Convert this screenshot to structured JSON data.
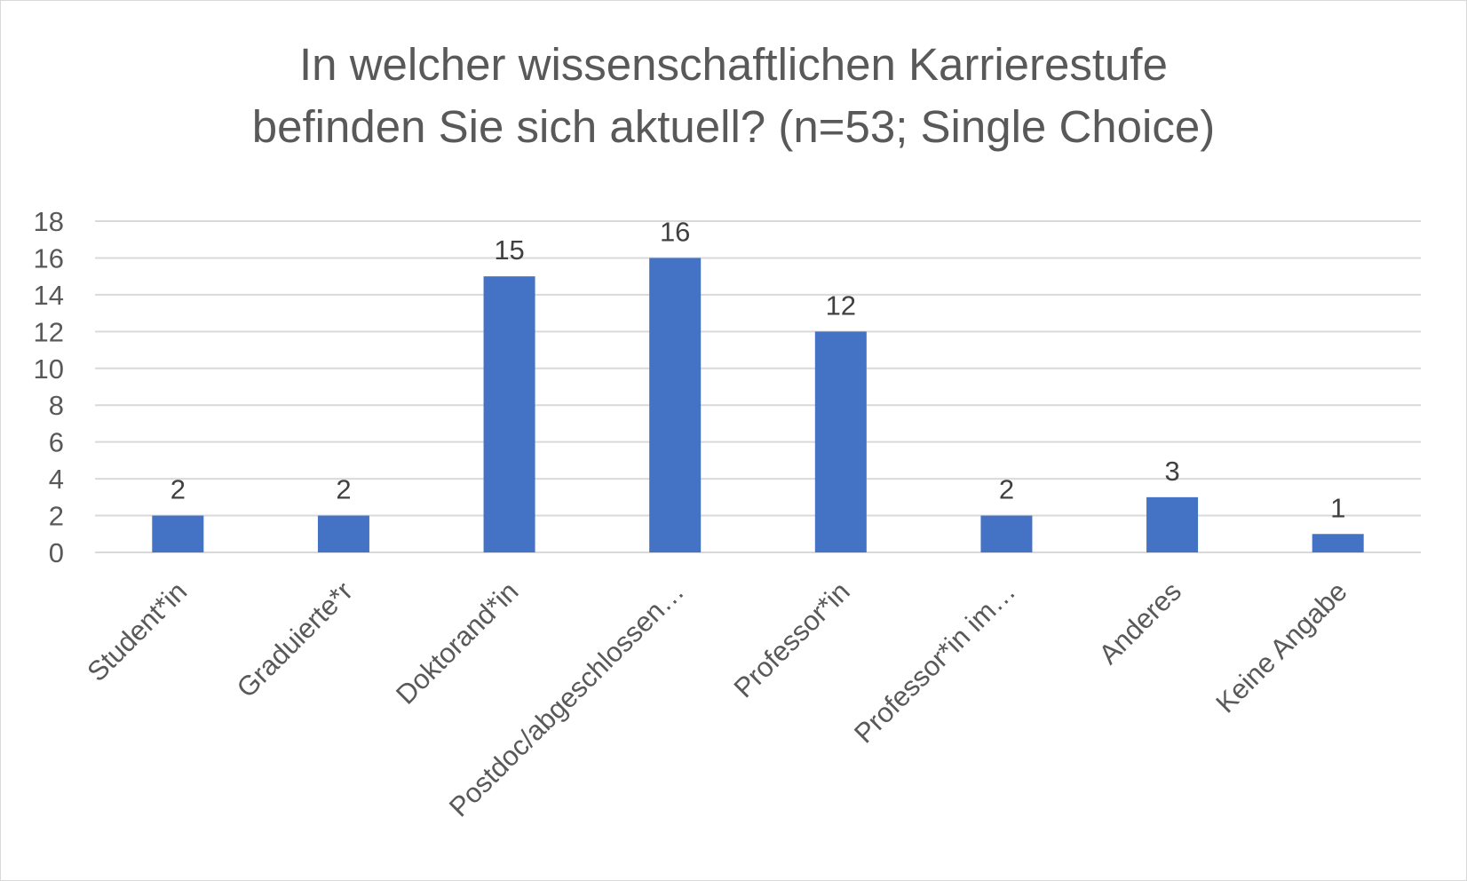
{
  "chart_data": {
    "type": "bar",
    "title_lines": [
      "In welcher wissenschaftlichen Karrierestufe",
      "befinden Sie sich aktuell? (n=53; Single Choice)"
    ],
    "categories": [
      "Student*in",
      "Graduierte*r",
      "Doktorand*in",
      "Postdoc/abgeschlossen…",
      "Professor*in",
      "Professor*in im…",
      "Anderes",
      "Keine Angabe"
    ],
    "values": [
      2,
      2,
      15,
      16,
      12,
      2,
      3,
      1
    ],
    "data_labels": [
      "2",
      "2",
      "15",
      "16",
      "12",
      "2",
      "3",
      "1"
    ],
    "ylim": [
      0,
      18
    ],
    "yticks": [
      "0",
      "2",
      "4",
      "6",
      "8",
      "10",
      "12",
      "14",
      "16",
      "18"
    ],
    "grid": true,
    "legend": "none",
    "colors": {
      "bar": "#4472c4",
      "grid": "#d9d9d9"
    }
  }
}
